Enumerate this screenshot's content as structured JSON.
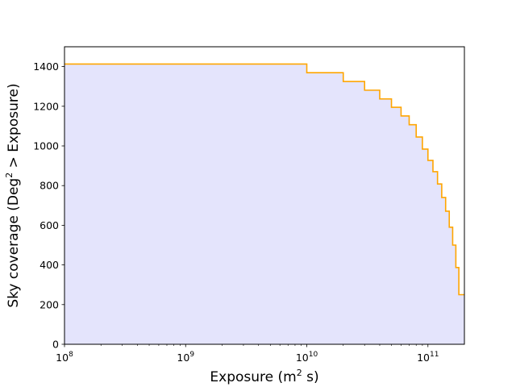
{
  "chart_data": {
    "type": "line",
    "drawstyle": "steps",
    "xscale": "log",
    "xlim": [
      100000000,
      200000000000
    ],
    "ylim": [
      0,
      1500
    ],
    "title": "",
    "xlabel": {
      "prefix": "Exposure (m",
      "sup": "2",
      "suffix": " s)"
    },
    "ylabel": {
      "prefix": "Sky coverage (Deg",
      "sup": "2",
      "suffix": " > Exposure)"
    },
    "x_ticks": [
      {
        "value": 100000000,
        "base": "10",
        "exp": "8"
      },
      {
        "value": 1000000000,
        "base": "10",
        "exp": "9"
      },
      {
        "value": 10000000000,
        "base": "10",
        "exp": "10"
      },
      {
        "value": 100000000000,
        "base": "10",
        "exp": "11"
      }
    ],
    "y_ticks": [
      0,
      200,
      400,
      600,
      800,
      1000,
      1200,
      1400
    ],
    "grid": false,
    "line_color": "#ffa500",
    "fill_color": "#e4e4fc",
    "series": [
      {
        "x": [
          100000000,
          10000000000,
          20000000000,
          30000000000,
          40000000000,
          50000000000,
          60000000000,
          70000000000,
          80000000000,
          90000000000,
          100000000000,
          110000000000,
          120000000000,
          130000000000,
          140000000000,
          150000000000,
          160000000000,
          170000000000,
          180000000000,
          190000000000
        ],
        "y": [
          1413,
          1369,
          1325,
          1281,
          1237,
          1195,
          1151,
          1107,
          1045,
          984,
          927,
          870,
          808,
          740,
          671,
          590,
          500,
          387,
          250,
          250
        ]
      }
    ]
  }
}
